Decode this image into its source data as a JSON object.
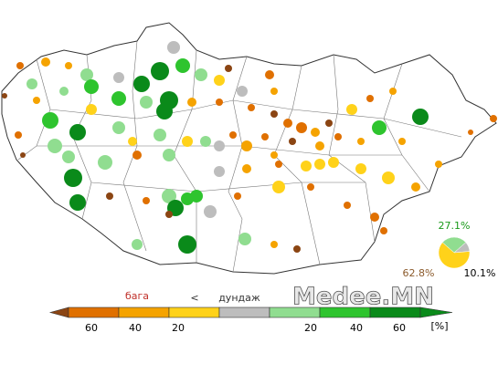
{
  "pie": {
    "slices": [
      {
        "value": 27.1,
        "label": "27.1%",
        "color": "#90dd90",
        "label_color": "#1a9a1a"
      },
      {
        "value": 10.1,
        "label": "10.1%",
        "color": "#bdbdbd",
        "label_color": "#000000"
      },
      {
        "value": 62.8,
        "label": "62.8%",
        "color": "#ffd21a",
        "label_color": "#8b5a2b"
      }
    ]
  },
  "legend": {
    "low": "бага",
    "sign": "<",
    "mid": "дундаж",
    "ticks": [
      "60",
      "40",
      "20",
      "20",
      "40",
      "60"
    ],
    "unit": "[%]",
    "colors": [
      "#8b4513",
      "#e07000",
      "#f5a300",
      "#ffd21a",
      "#bdbdbd",
      "#90dd90",
      "#2ec42e",
      "#0a8a1a",
      "#0a8a1a"
    ]
  },
  "watermark": "Medee.MN"
}
